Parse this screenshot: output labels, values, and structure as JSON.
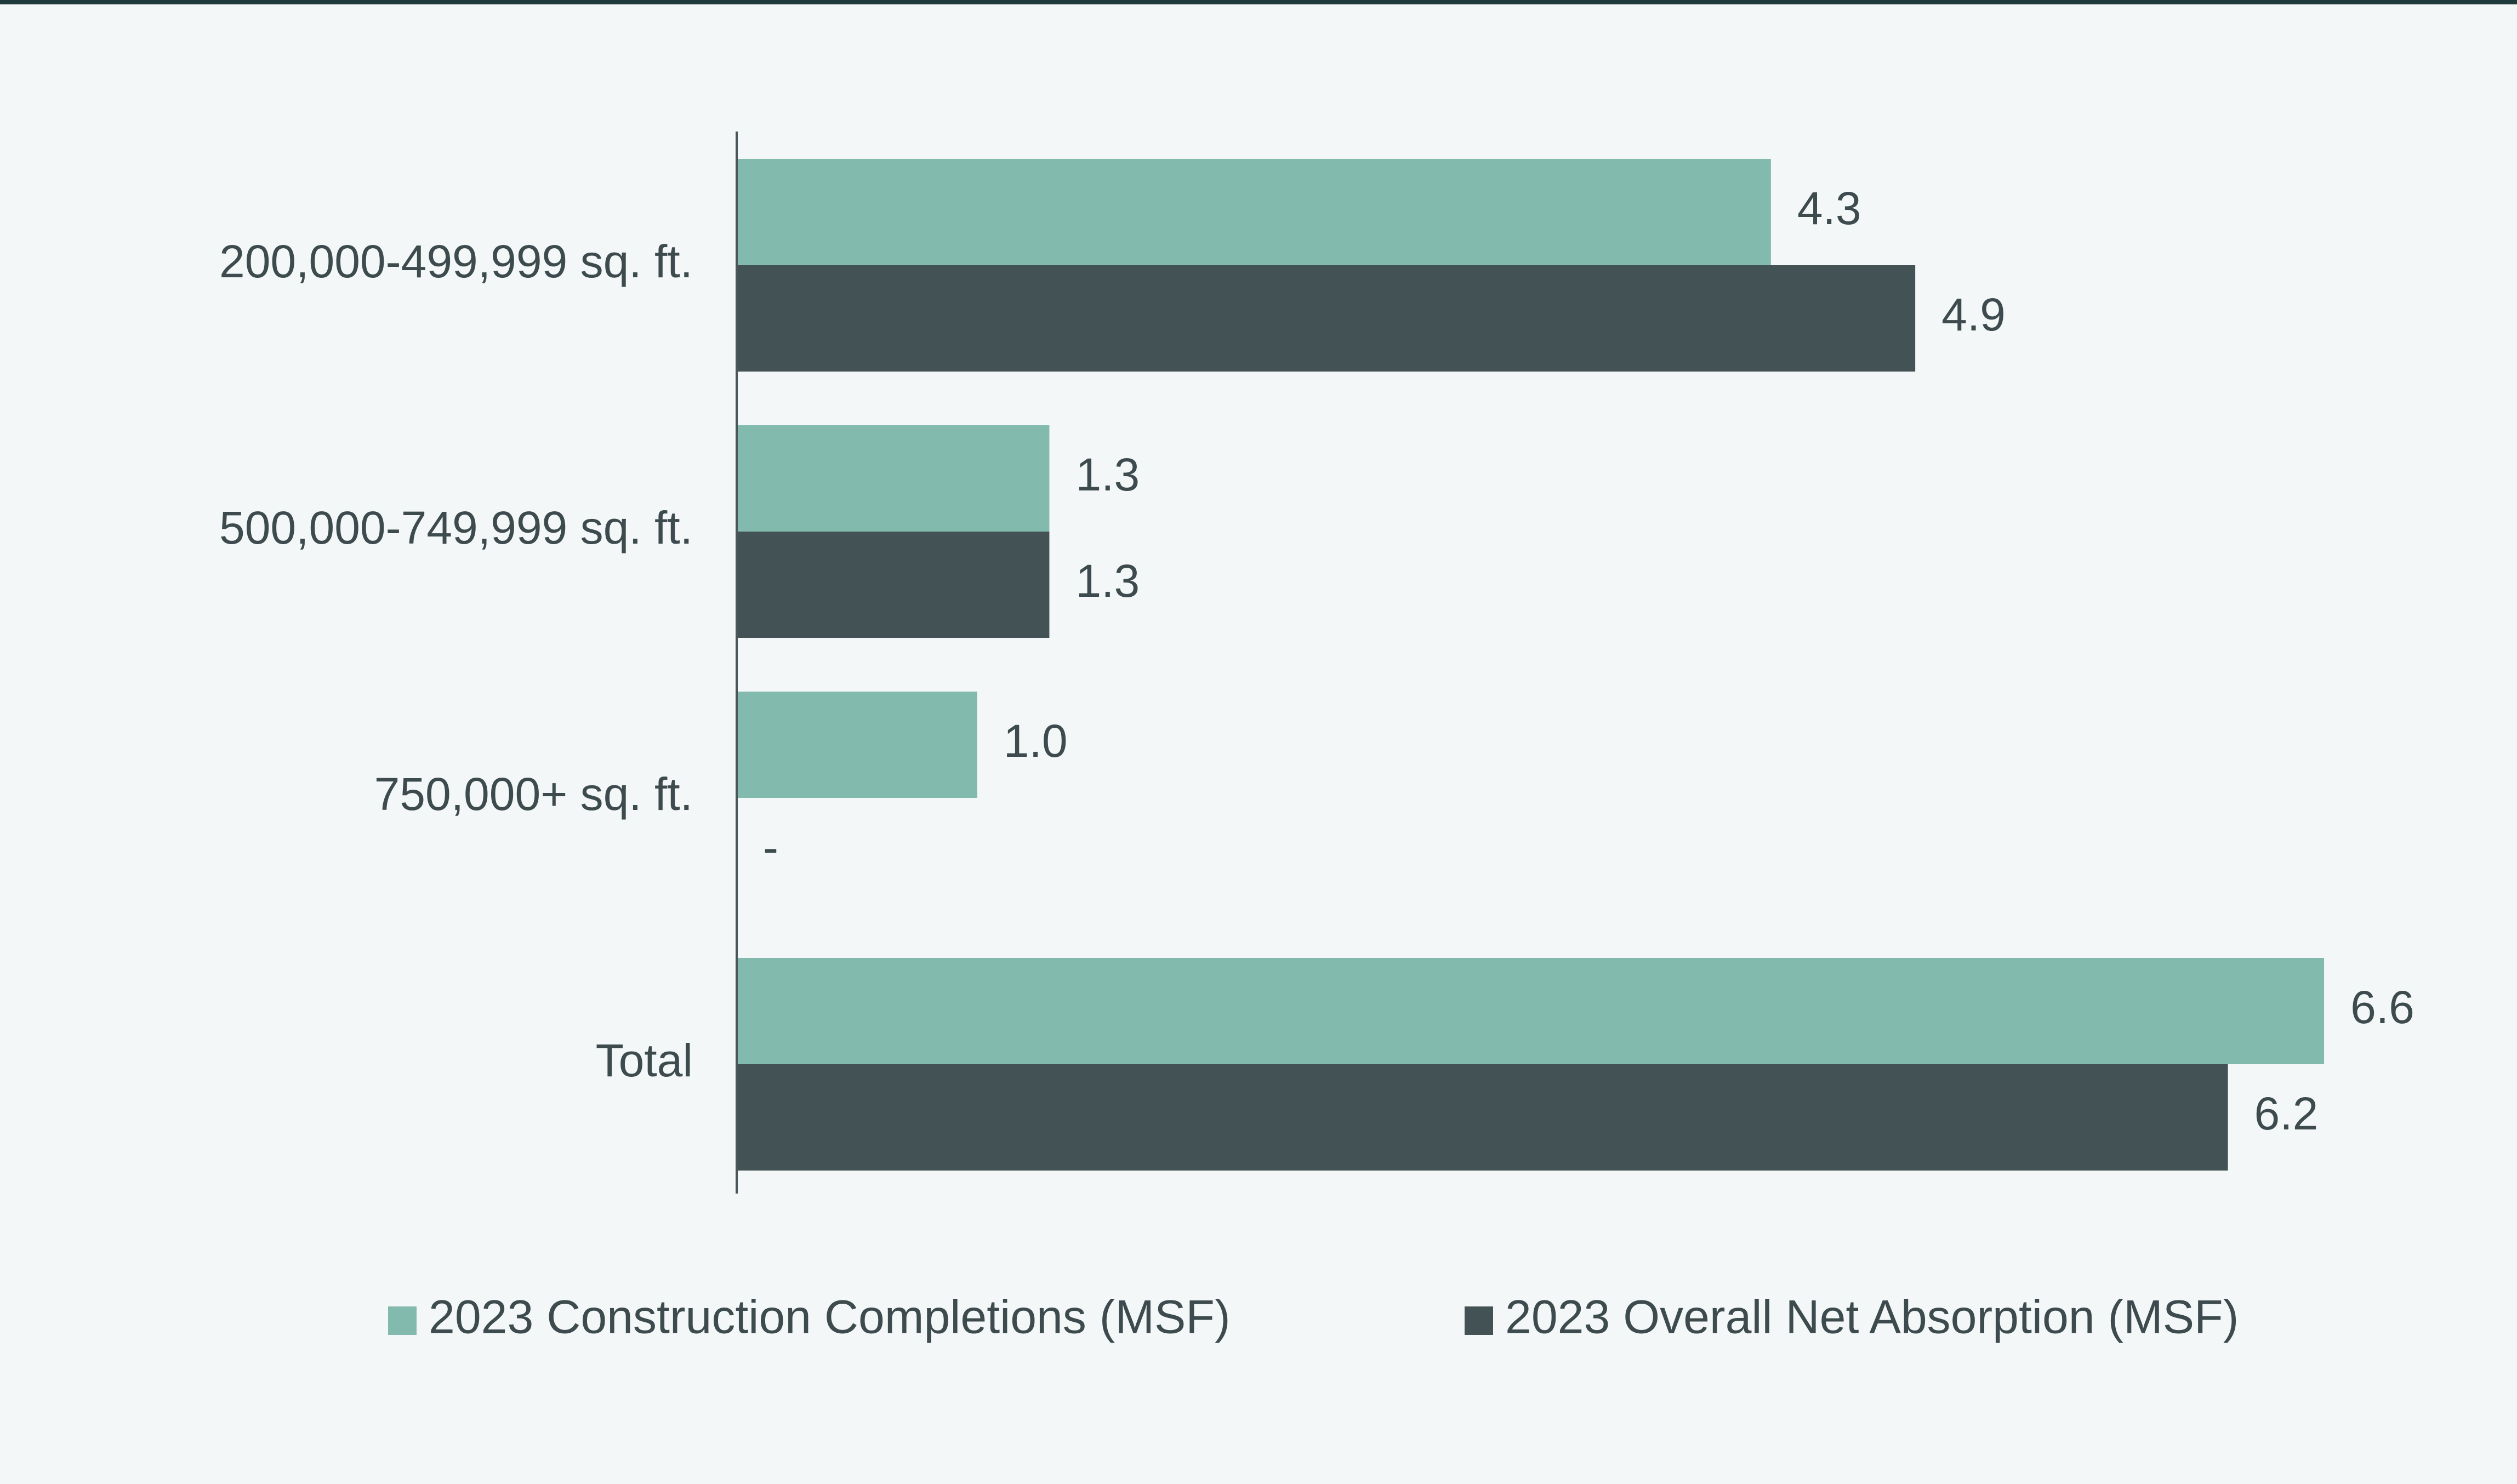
{
  "chart_data": {
    "type": "bar",
    "orientation": "horizontal",
    "title": "",
    "xlabel": "",
    "ylabel": "",
    "categories": [
      "200,000-499,999 sq. ft.",
      "500,000-749,999 sq. ft.",
      "750,000+ sq. ft.",
      "Total"
    ],
    "series": [
      {
        "name": "2023 Construction Completions (MSF)",
        "color": "#82bbad",
        "values": [
          4.3,
          1.3,
          1.0,
          6.6
        ],
        "labels": [
          "4.3",
          "1.3",
          "1.0",
          "6.6"
        ]
      },
      {
        "name": "2023 Overall Net Absorption (MSF)",
        "color": "#435254",
        "values": [
          4.9,
          1.3,
          0,
          6.2
        ],
        "labels": [
          "4.9",
          "1.3",
          "-",
          "6.2"
        ]
      }
    ],
    "xlim": [
      0,
      7.3
    ],
    "grid": false,
    "legend_position": "bottom"
  }
}
